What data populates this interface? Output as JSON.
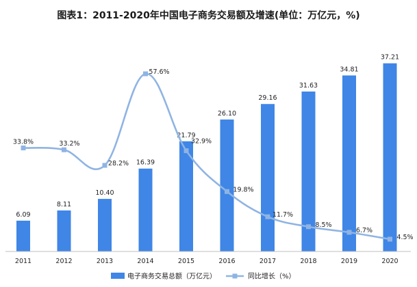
{
  "chart_data": {
    "type": "bar",
    "title": "图表1：2011-2020年中国电子商务交易额及增速(单位：万亿元，%)",
    "categories": [
      "2011",
      "2012",
      "2013",
      "2014",
      "2015",
      "2016",
      "2017",
      "2018",
      "2019",
      "2020"
    ],
    "series": [
      {
        "name": "电子商务交易总额（万亿元）",
        "type": "bar",
        "color": "#3f86e6",
        "values": [
          6.09,
          8.11,
          10.4,
          16.39,
          21.79,
          26.1,
          29.16,
          31.63,
          34.81,
          37.21
        ],
        "labels": [
          "6.09",
          "8.11",
          "10.40",
          "16.39",
          "21.79",
          "26.10",
          "29.16",
          "31.63",
          "34.81",
          "37.21"
        ]
      },
      {
        "name": "同比增长（%）",
        "type": "line",
        "color": "#8fb4e3",
        "values": [
          33.8,
          33.2,
          28.2,
          57.6,
          32.9,
          19.8,
          11.7,
          8.5,
          6.7,
          4.5
        ],
        "labels": [
          "33.8%",
          "33.2%",
          "28.2%",
          "57.6%",
          "32.9%",
          "19.8%",
          "11.7%",
          "8.5%",
          "6.7%",
          "4.5%"
        ]
      }
    ],
    "grid": false,
    "legend_position": "bottom"
  }
}
